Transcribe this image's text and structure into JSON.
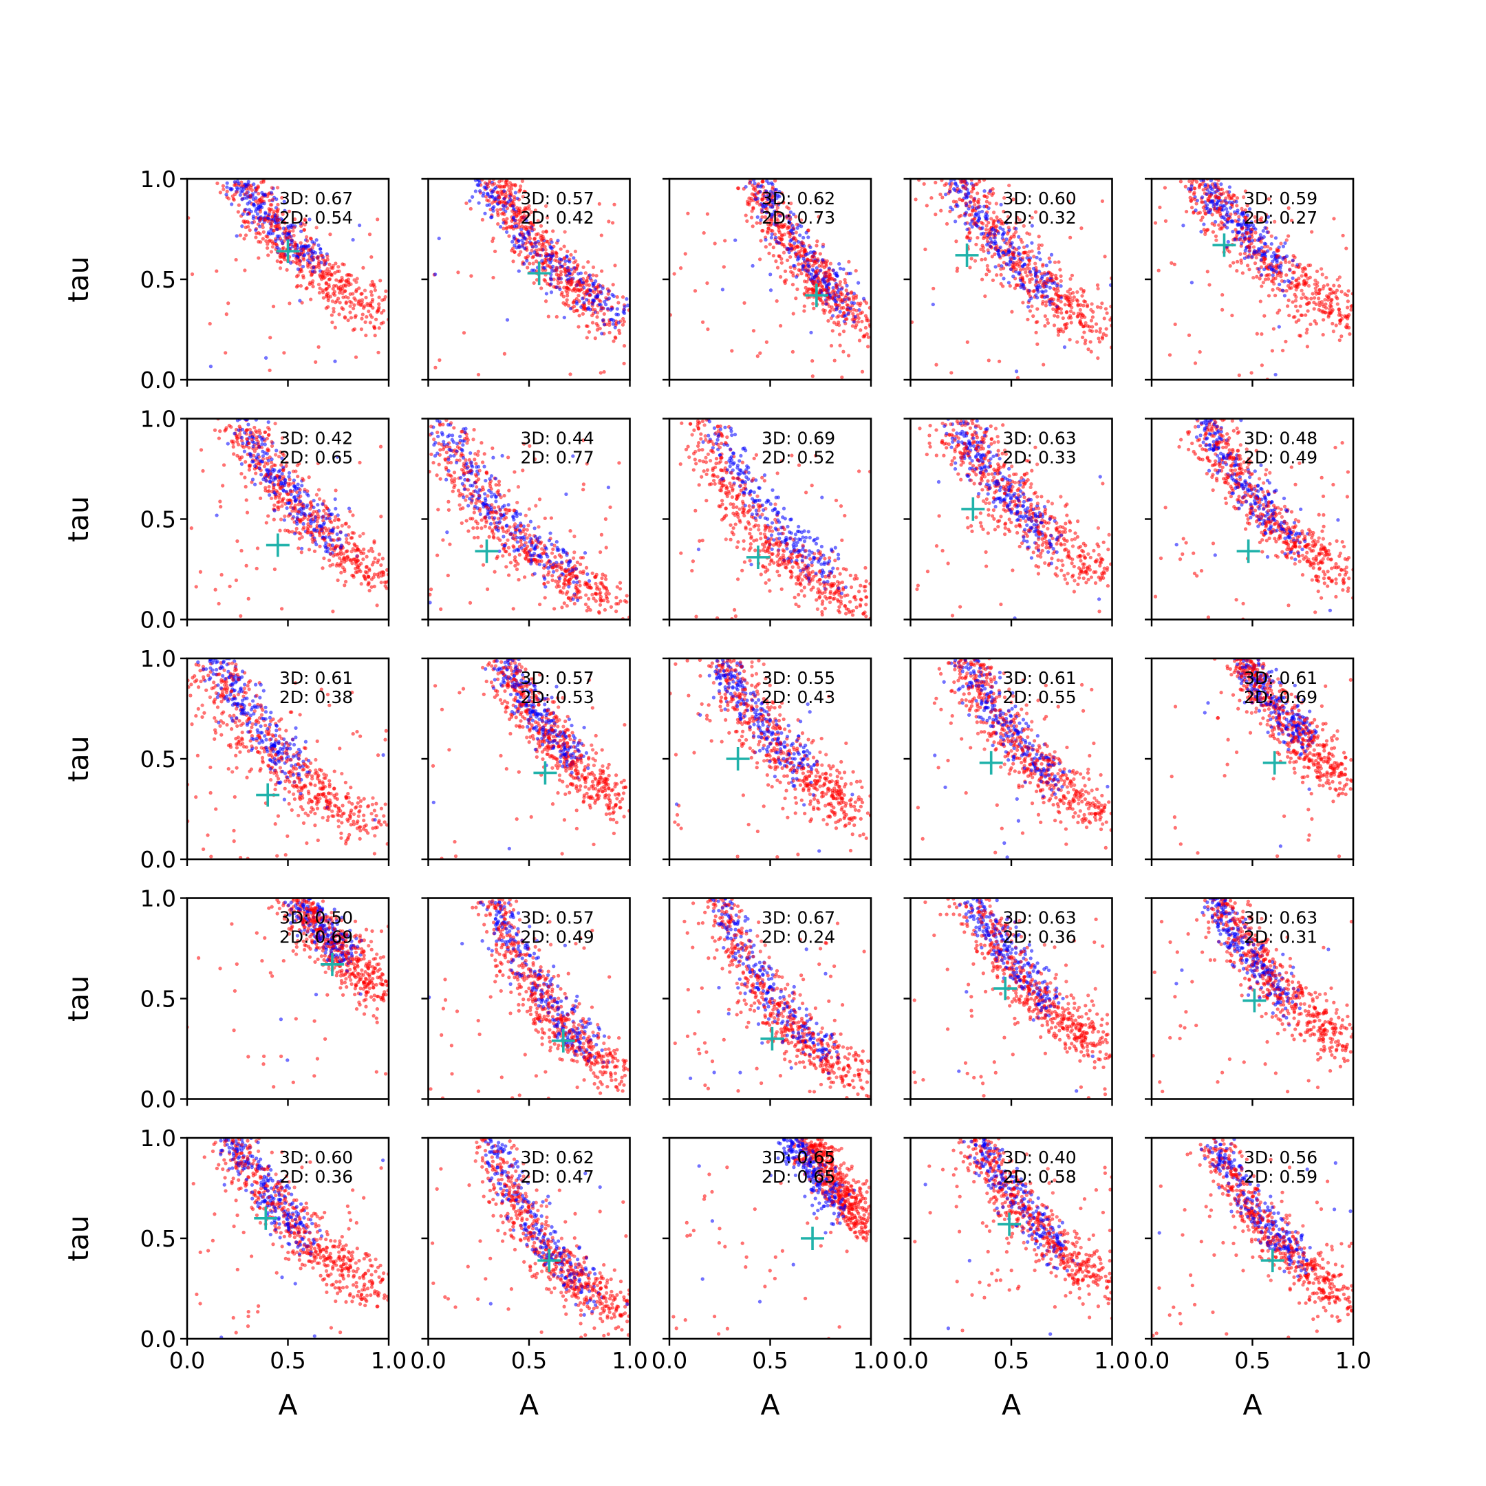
{
  "figure": {
    "xlabel": "A",
    "ylabel": "tau",
    "xticks": [
      "0.0",
      "0.5",
      "1.0"
    ],
    "yticks": [
      "0.0",
      "0.5",
      "1.0"
    ],
    "xlim": [
      0,
      1
    ],
    "ylim": [
      0,
      1
    ],
    "colors": {
      "red": "#ff0000",
      "blue": "#0000ff",
      "marker": "#20b2aa",
      "axis": "#000000"
    }
  },
  "chart_data": [
    {
      "type": "scatter",
      "xlim": [
        0,
        1
      ],
      "ylim": [
        0,
        1
      ],
      "annotation": [
        "3D: 0.67",
        "2D: 0.54"
      ],
      "marker": [
        0.5,
        0.64
      ],
      "red": {
        "x0": 0.24,
        "b": 0.83,
        "tmax": 0.72,
        "w": 0.07,
        "n": 420
      },
      "blue": {
        "x0": 0.24,
        "b": 0.7,
        "tmax": 0.42,
        "w": 0.035,
        "n": 240
      }
    },
    {
      "type": "scatter",
      "xlim": [
        0,
        1
      ],
      "ylim": [
        0,
        1
      ],
      "annotation": [
        "3D: 0.57",
        "2D: 0.42"
      ],
      "marker": [
        0.55,
        0.53
      ],
      "red": {
        "x0": 0.3,
        "b": 0.98,
        "tmax": 0.66,
        "w": 0.05,
        "n": 420
      },
      "blue": {
        "x0": 0.26,
        "b": 0.83,
        "tmax": 0.7,
        "w": 0.04,
        "n": 260
      }
    },
    {
      "type": "scatter",
      "xlim": [
        0,
        1
      ],
      "ylim": [
        0,
        1
      ],
      "annotation": [
        "3D: 0.62",
        "2D: 0.73"
      ],
      "marker": [
        0.73,
        0.42
      ],
      "red": {
        "x0": 0.4,
        "b": 1.15,
        "tmax": 0.58,
        "w": 0.045,
        "n": 420
      },
      "blue": {
        "x0": 0.43,
        "b": 1.08,
        "tmax": 0.5,
        "w": 0.03,
        "n": 240
      }
    },
    {
      "type": "scatter",
      "xlim": [
        0,
        1
      ],
      "ylim": [
        0,
        1
      ],
      "annotation": [
        "3D: 0.60",
        "2D: 0.32"
      ],
      "marker": [
        0.28,
        0.62
      ],
      "red": {
        "x0": 0.22,
        "b": 0.96,
        "tmax": 0.78,
        "w": 0.09,
        "n": 420
      },
      "blue": {
        "x0": 0.2,
        "b": 0.85,
        "tmax": 0.52,
        "w": 0.035,
        "n": 240
      }
    },
    {
      "type": "scatter",
      "xlim": [
        0,
        1
      ],
      "ylim": [
        0,
        1
      ],
      "annotation": [
        "3D: 0.59",
        "2D: 0.27"
      ],
      "marker": [
        0.36,
        0.67
      ],
      "red": {
        "x0": 0.22,
        "b": 0.82,
        "tmax": 0.78,
        "w": 0.08,
        "n": 420
      },
      "blue": {
        "x0": 0.22,
        "b": 0.7,
        "tmax": 0.45,
        "w": 0.035,
        "n": 240
      }
    },
    {
      "type": "scatter",
      "xlim": [
        0,
        1
      ],
      "ylim": [
        0,
        1
      ],
      "annotation": [
        "3D: 0.42",
        "2D: 0.65"
      ],
      "marker": [
        0.45,
        0.37
      ],
      "red": {
        "x0": 0.24,
        "b": 1.08,
        "tmax": 0.76,
        "w": 0.06,
        "n": 420
      },
      "blue": {
        "x0": 0.26,
        "b": 1.0,
        "tmax": 0.5,
        "w": 0.035,
        "n": 240
      }
    },
    {
      "type": "scatter",
      "xlim": [
        0,
        1
      ],
      "ylim": [
        0,
        1
      ],
      "annotation": [
        "3D: 0.44",
        "2D: 0.77"
      ],
      "marker": [
        0.29,
        0.34
      ],
      "red": {
        "x0": 0.02,
        "b": 1.25,
        "tmax": 0.97,
        "w": 0.08,
        "n": 420
      },
      "blue": {
        "x0": 0.04,
        "b": 1.1,
        "tmax": 0.7,
        "w": 0.045,
        "n": 260
      }
    },
    {
      "type": "scatter",
      "xlim": [
        0,
        1
      ],
      "ylim": [
        0,
        1
      ],
      "annotation": [
        "3D: 0.69",
        "2D: 0.52"
      ],
      "marker": [
        0.44,
        0.31
      ],
      "red": {
        "x0": 0.12,
        "b": 1.4,
        "tmax": 0.88,
        "w": 0.07,
        "n": 420
      },
      "blue": {
        "x0": 0.22,
        "b": 1.28,
        "tmax": 0.6,
        "w": 0.035,
        "n": 240
      }
    },
    {
      "type": "scatter",
      "xlim": [
        0,
        1
      ],
      "ylim": [
        0,
        1
      ],
      "annotation": [
        "3D: 0.63",
        "2D: 0.33"
      ],
      "marker": [
        0.31,
        0.55
      ],
      "red": {
        "x0": 0.22,
        "b": 1.03,
        "tmax": 0.78,
        "w": 0.09,
        "n": 420
      },
      "blue": {
        "x0": 0.21,
        "b": 0.95,
        "tmax": 0.5,
        "w": 0.035,
        "n": 240
      }
    },
    {
      "type": "scatter",
      "xlim": [
        0,
        1
      ],
      "ylim": [
        0,
        1
      ],
      "annotation": [
        "3D: 0.48",
        "2D: 0.49"
      ],
      "marker": [
        0.48,
        0.34
      ],
      "red": {
        "x0": 0.24,
        "b": 1.08,
        "tmax": 0.76,
        "w": 0.06,
        "n": 420
      },
      "blue": {
        "x0": 0.24,
        "b": 1.0,
        "tmax": 0.48,
        "w": 0.035,
        "n": 240
      }
    },
    {
      "type": "scatter",
      "xlim": [
        0,
        1
      ],
      "ylim": [
        0,
        1
      ],
      "annotation": [
        "3D: 0.61",
        "2D: 0.38"
      ],
      "marker": [
        0.4,
        0.32
      ],
      "red": {
        "x0": 0.08,
        "b": 1.08,
        "tmax": 0.92,
        "w": 0.09,
        "n": 420
      },
      "blue": {
        "x0": 0.12,
        "b": 0.95,
        "tmax": 0.45,
        "w": 0.035,
        "n": 240
      }
    },
    {
      "type": "scatter",
      "xlim": [
        0,
        1
      ],
      "ylim": [
        0,
        1
      ],
      "annotation": [
        "3D: 0.57",
        "2D: 0.53"
      ],
      "marker": [
        0.58,
        0.43
      ],
      "red": {
        "x0": 0.33,
        "b": 1.05,
        "tmax": 0.65,
        "w": 0.055,
        "n": 420
      },
      "blue": {
        "x0": 0.35,
        "b": 0.93,
        "tmax": 0.4,
        "w": 0.03,
        "n": 240
      }
    },
    {
      "type": "scatter",
      "xlim": [
        0,
        1
      ],
      "ylim": [
        0,
        1
      ],
      "annotation": [
        "3D: 0.55",
        "2D: 0.43"
      ],
      "marker": [
        0.34,
        0.5
      ],
      "red": {
        "x0": 0.24,
        "b": 1.08,
        "tmax": 0.76,
        "w": 0.07,
        "n": 420
      },
      "blue": {
        "x0": 0.24,
        "b": 0.96,
        "tmax": 0.46,
        "w": 0.035,
        "n": 240
      }
    },
    {
      "type": "scatter",
      "xlim": [
        0,
        1
      ],
      "ylim": [
        0,
        1
      ],
      "annotation": [
        "3D: 0.61",
        "2D: 0.55"
      ],
      "marker": [
        0.4,
        0.48
      ],
      "red": {
        "x0": 0.24,
        "b": 1.08,
        "tmax": 0.76,
        "w": 0.065,
        "n": 420
      },
      "blue": {
        "x0": 0.26,
        "b": 0.98,
        "tmax": 0.48,
        "w": 0.035,
        "n": 240
      }
    },
    {
      "type": "scatter",
      "xlim": [
        0,
        1
      ],
      "ylim": [
        0,
        1
      ],
      "annotation": [
        "3D: 0.61",
        "2D: 0.69"
      ],
      "marker": [
        0.61,
        0.48
      ],
      "red": {
        "x0": 0.42,
        "b": 0.9,
        "tmax": 0.58,
        "w": 0.055,
        "n": 420
      },
      "blue": {
        "x0": 0.44,
        "b": 0.8,
        "tmax": 0.35,
        "w": 0.03,
        "n": 240
      }
    },
    {
      "type": "scatter",
      "xlim": [
        0,
        1
      ],
      "ylim": [
        0,
        1
      ],
      "annotation": [
        "3D: 0.50",
        "2D: 0.69"
      ],
      "marker": [
        0.72,
        0.67
      ],
      "red": {
        "x0": 0.5,
        "b": 0.7,
        "tmax": 0.5,
        "w": 0.055,
        "n": 420
      },
      "blue": {
        "x0": 0.52,
        "b": 0.62,
        "tmax": 0.3,
        "w": 0.03,
        "n": 220
      }
    },
    {
      "type": "scatter",
      "xlim": [
        0,
        1
      ],
      "ylim": [
        0,
        1
      ],
      "annotation": [
        "3D: 0.57",
        "2D: 0.49"
      ],
      "marker": [
        0.67,
        0.29
      ],
      "red": {
        "x0": 0.3,
        "b": 1.5,
        "tmax": 0.7,
        "w": 0.055,
        "n": 420
      },
      "blue": {
        "x0": 0.32,
        "b": 1.4,
        "tmax": 0.52,
        "w": 0.035,
        "n": 240
      }
    },
    {
      "type": "scatter",
      "xlim": [
        0,
        1
      ],
      "ylim": [
        0,
        1
      ],
      "annotation": [
        "3D: 0.67",
        "2D: 0.24"
      ],
      "marker": [
        0.51,
        0.3
      ],
      "red": {
        "x0": 0.22,
        "b": 1.48,
        "tmax": 0.78,
        "w": 0.06,
        "n": 420
      },
      "blue": {
        "x0": 0.25,
        "b": 1.38,
        "tmax": 0.55,
        "w": 0.035,
        "n": 240
      }
    },
    {
      "type": "scatter",
      "xlim": [
        0,
        1
      ],
      "ylim": [
        0,
        1
      ],
      "annotation": [
        "3D: 0.63",
        "2D: 0.36"
      ],
      "marker": [
        0.47,
        0.55
      ],
      "red": {
        "x0": 0.28,
        "b": 1.05,
        "tmax": 0.72,
        "w": 0.065,
        "n": 420
      },
      "blue": {
        "x0": 0.3,
        "b": 0.95,
        "tmax": 0.4,
        "w": 0.035,
        "n": 240
      }
    },
    {
      "type": "scatter",
      "xlim": [
        0,
        1
      ],
      "ylim": [
        0,
        1
      ],
      "annotation": [
        "3D: 0.63",
        "2D: 0.31"
      ],
      "marker": [
        0.51,
        0.49
      ],
      "red": {
        "x0": 0.3,
        "b": 0.98,
        "tmax": 0.7,
        "w": 0.06,
        "n": 420
      },
      "blue": {
        "x0": 0.28,
        "b": 0.88,
        "tmax": 0.42,
        "w": 0.035,
        "n": 240
      }
    },
    {
      "type": "scatter",
      "xlim": [
        0,
        1
      ],
      "ylim": [
        0,
        1
      ],
      "annotation": [
        "3D: 0.60",
        "2D: 0.36"
      ],
      "marker": [
        0.39,
        0.6
      ],
      "red": {
        "x0": 0.2,
        "b": 0.98,
        "tmax": 0.8,
        "w": 0.07,
        "n": 420
      },
      "blue": {
        "x0": 0.2,
        "b": 0.9,
        "tmax": 0.42,
        "w": 0.04,
        "n": 240
      }
    },
    {
      "type": "scatter",
      "xlim": [
        0,
        1
      ],
      "ylim": [
        0,
        1
      ],
      "annotation": [
        "3D: 0.62",
        "2D: 0.47"
      ],
      "marker": [
        0.6,
        0.39
      ],
      "red": {
        "x0": 0.28,
        "b": 1.45,
        "tmax": 0.72,
        "w": 0.055,
        "n": 420
      },
      "blue": {
        "x0": 0.3,
        "b": 1.35,
        "tmax": 0.52,
        "w": 0.035,
        "n": 240
      }
    },
    {
      "type": "scatter",
      "xlim": [
        0,
        1
      ],
      "ylim": [
        0,
        1
      ],
      "annotation": [
        "3D: 0.65",
        "2D: 0.65"
      ],
      "marker": [
        0.71,
        0.5
      ],
      "red": {
        "x0": 0.66,
        "b": 0.95,
        "tmax": 0.34,
        "w": 0.045,
        "n": 420
      },
      "blue": {
        "x0": 0.58,
        "b": 0.88,
        "tmax": 0.28,
        "w": 0.035,
        "n": 220
      }
    },
    {
      "type": "scatter",
      "xlim": [
        0,
        1
      ],
      "ylim": [
        0,
        1
      ],
      "annotation": [
        "3D: 0.40",
        "2D: 0.58"
      ],
      "marker": [
        0.49,
        0.57
      ],
      "red": {
        "x0": 0.3,
        "b": 1.03,
        "tmax": 0.7,
        "w": 0.06,
        "n": 420
      },
      "blue": {
        "x0": 0.32,
        "b": 0.95,
        "tmax": 0.46,
        "w": 0.035,
        "n": 240
      }
    },
    {
      "type": "scatter",
      "xlim": [
        0,
        1
      ],
      "ylim": [
        0,
        1
      ],
      "annotation": [
        "3D: 0.56",
        "2D: 0.59"
      ],
      "marker": [
        0.6,
        0.39
      ],
      "red": {
        "x0": 0.28,
        "b": 1.18,
        "tmax": 0.72,
        "w": 0.055,
        "n": 420
      },
      "blue": {
        "x0": 0.3,
        "b": 1.08,
        "tmax": 0.45,
        "w": 0.03,
        "n": 240
      }
    }
  ]
}
